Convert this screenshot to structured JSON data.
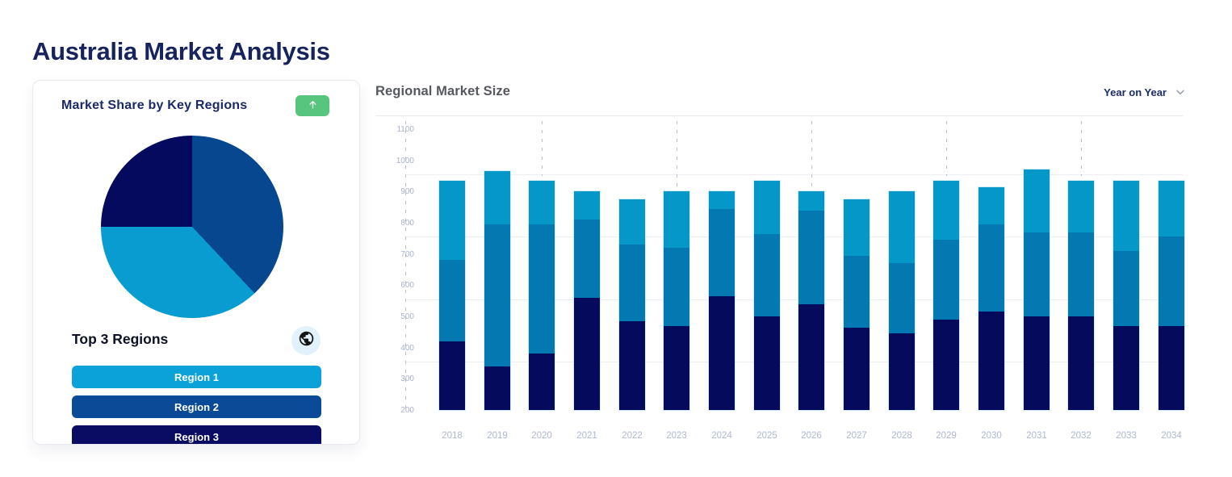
{
  "page": {
    "title": "Australia Market Analysis"
  },
  "market_share_card": {
    "title": "Market Share by Key Regions",
    "trend_button": {
      "icon": "arrow-up",
      "background": "#57c57e"
    },
    "pie": {
      "slices": [
        {
          "label": "Region 2",
          "percent": 38,
          "color": "#064790"
        },
        {
          "label": "Region 1",
          "percent": 37,
          "color": "#089cd0"
        },
        {
          "label": "Region 3",
          "percent": 25,
          "color": "#050a5e"
        }
      ]
    },
    "subtitle": "Top 3 Regions",
    "globe_icon": "globe",
    "regions": [
      {
        "label": "Region 1",
        "color": "#0aa2d8"
      },
      {
        "label": "Region 2",
        "color": "#0b4a96"
      },
      {
        "label": "Region 3",
        "color": "#090c62"
      }
    ]
  },
  "regional_market": {
    "title": "Regional Market Size",
    "dropdown": {
      "label": "Year on Year",
      "icon": "chevron-down"
    }
  },
  "chart_data": {
    "type": "bar",
    "stacked": true,
    "title": "Regional Market Size",
    "x": [
      "2018",
      "2019",
      "2020",
      "2021",
      "2022",
      "2023",
      "2024",
      "2025",
      "2026",
      "2027",
      "2028",
      "2029",
      "2030",
      "2031",
      "2032",
      "2033",
      "2034"
    ],
    "baseline": 200,
    "ylim": [
      200,
      1100
    ],
    "yticks": [
      200,
      300,
      400,
      500,
      600,
      700,
      800,
      900,
      1000,
      1100
    ],
    "gridline_values": [
      355,
      555,
      755,
      955
    ],
    "grid": true,
    "legend": "none",
    "dashed_guide_years": [
      "2020",
      "2023",
      "2026",
      "2029",
      "2032"
    ],
    "series": [
      {
        "name": "Region 3",
        "color": "#060a5c",
        "cumulative_top": [
          420,
          340,
          380,
          560,
          485,
          470,
          565,
          500,
          540,
          465,
          445,
          490,
          515,
          500,
          500,
          470,
          470
        ]
      },
      {
        "name": "Region 2",
        "color": "#0478b1",
        "cumulative_top": [
          680,
          795,
          795,
          810,
          730,
          720,
          845,
          765,
          840,
          695,
          670,
          745,
          795,
          770,
          770,
          710,
          755
        ]
      },
      {
        "name": "Region 1",
        "color": "#0597c7",
        "cumulative_top": [
          935,
          965,
          935,
          900,
          875,
          900,
          900,
          935,
          900,
          875,
          900,
          935,
          915,
          970,
          935,
          935,
          935
        ]
      }
    ]
  }
}
